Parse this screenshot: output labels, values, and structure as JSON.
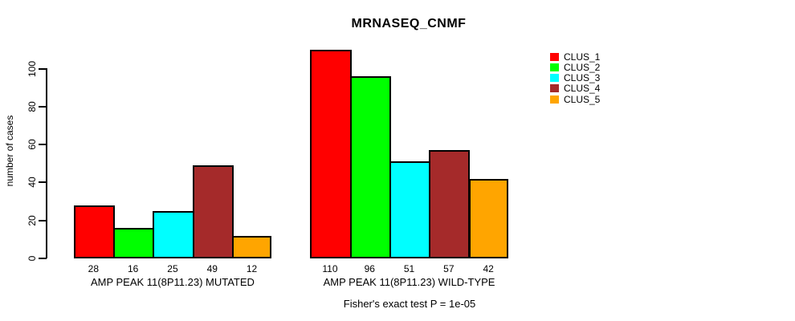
{
  "chart_data": {
    "type": "bar",
    "title": "MRNASEQ_CNMF",
    "ylabel": "number of cases",
    "xlabel": "",
    "y_ticks": [
      0,
      20,
      40,
      60,
      80,
      100
    ],
    "ylim": [
      0,
      110
    ],
    "grid": false,
    "legend_position": "right",
    "series_names": [
      "CLUS_1",
      "CLUS_2",
      "CLUS_3",
      "CLUS_4",
      "CLUS_5"
    ],
    "series_colors": [
      "#ff0000",
      "#00ff00",
      "#00ffff",
      "#a52a2a",
      "#ffa500"
    ],
    "groups": [
      {
        "label": "AMP PEAK 11(8P11.23) MUTATED",
        "values": [
          28,
          16,
          25,
          49,
          12
        ]
      },
      {
        "label": "AMP PEAK 11(8P11.23) WILD-TYPE",
        "values": [
          110,
          96,
          51,
          57,
          42
        ]
      }
    ],
    "caption": "Fisher's exact test P = 1e-05"
  }
}
